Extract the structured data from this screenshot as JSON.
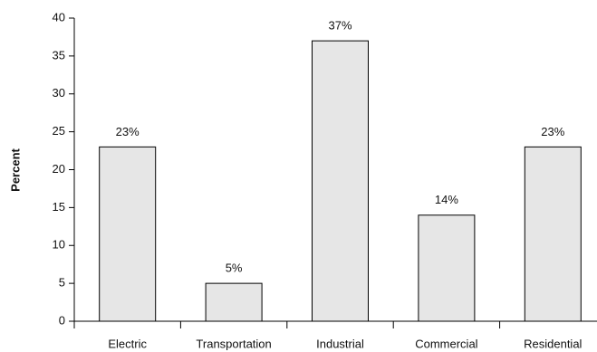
{
  "chart_data": {
    "type": "bar",
    "ylabel": "Percent",
    "categories": [
      "Electric",
      "Transportation",
      "Industrial",
      "Commercial",
      "Residential"
    ],
    "values": [
      23,
      5,
      37,
      14,
      23
    ],
    "value_labels": [
      "23%",
      "5%",
      "37%",
      "14%",
      "23%"
    ],
    "color": "#e6e6e6",
    "ylim": [
      0,
      40
    ],
    "yticks": [
      0,
      5,
      10,
      15,
      20,
      25,
      30,
      35,
      40
    ],
    "grid": false
  }
}
